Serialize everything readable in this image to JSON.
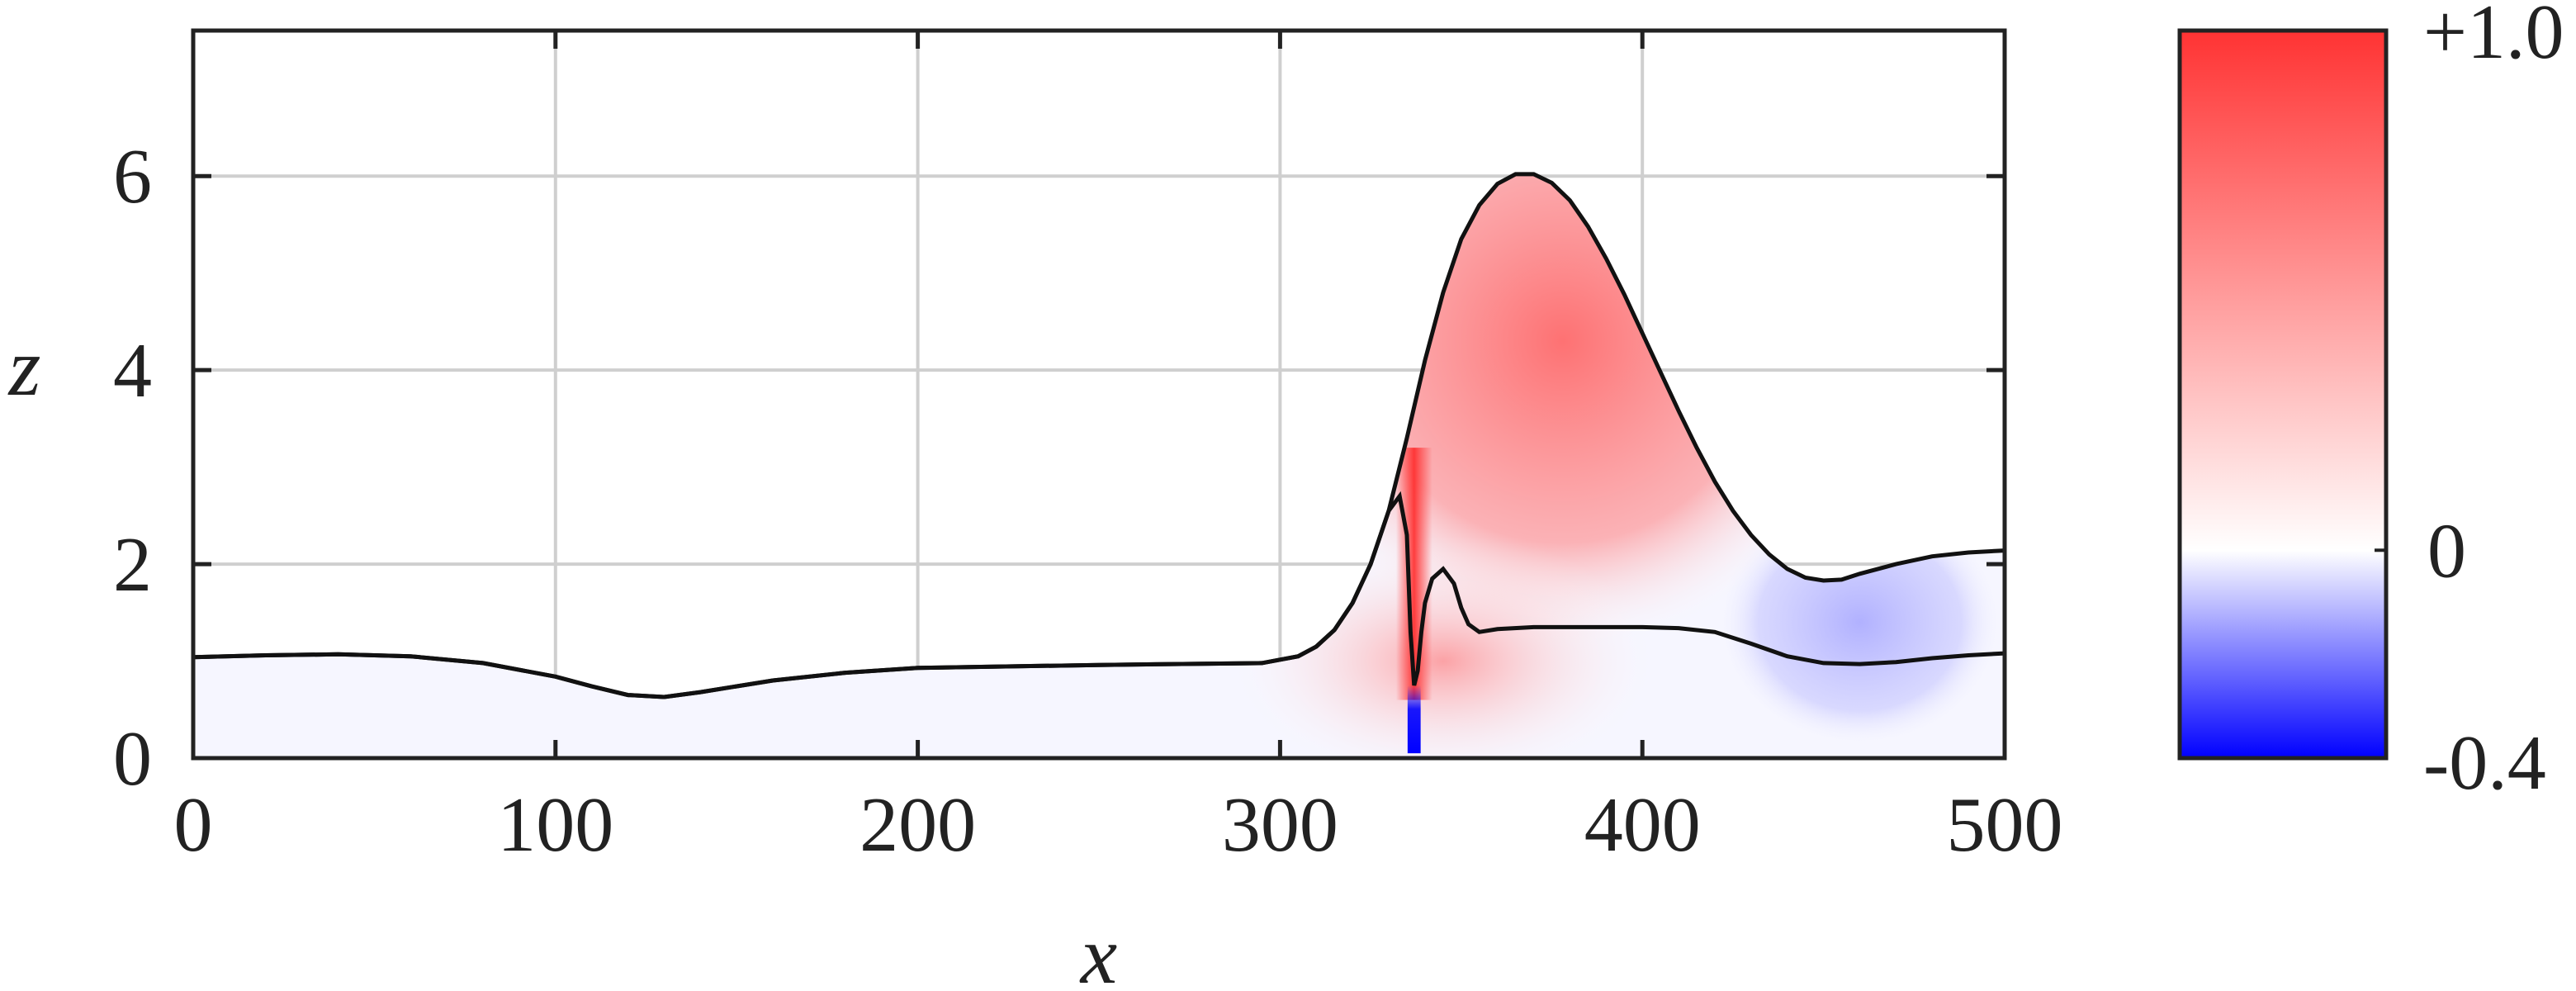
{
  "chart_data": {
    "type": "heatmap",
    "title": "",
    "xlabel": "x",
    "ylabel": "z",
    "xlim": [
      0,
      500
    ],
    "ylim": [
      0,
      7.5
    ],
    "xticks": [
      0,
      100,
      200,
      300,
      400,
      500
    ],
    "yticks": [
      0,
      2,
      4,
      6
    ],
    "grid": true,
    "colorbar": {
      "min": -0.4,
      "max": 1.0,
      "tick_labels": [
        "+1.0",
        "0",
        "-0.4"
      ],
      "colors": {
        "min": "#0000ff",
        "zero": "#ffffff",
        "max": "#ff3333"
      }
    },
    "series": [
      {
        "x": [
          0,
          20,
          40,
          60,
          80,
          100,
          110,
          120,
          130,
          140,
          160,
          180,
          200,
          250,
          295,
          305,
          310,
          315,
          320,
          325,
          330,
          335,
          340,
          345,
          350,
          355,
          360,
          365,
          370,
          375,
          380,
          385,
          390,
          395,
          400,
          405,
          410,
          415,
          420,
          425,
          430,
          435,
          440,
          445,
          450,
          455,
          460,
          470,
          480,
          490,
          500
        ],
        "y": [
          1.04,
          1.06,
          1.07,
          1.05,
          0.98,
          0.84,
          0.74,
          0.65,
          0.63,
          0.68,
          0.8,
          0.88,
          0.93,
          0.96,
          0.98,
          1.05,
          1.15,
          1.32,
          1.6,
          2.0,
          2.55,
          3.3,
          4.1,
          4.8,
          5.35,
          5.7,
          5.92,
          6.02,
          6.02,
          5.93,
          5.75,
          5.48,
          5.15,
          4.78,
          4.38,
          3.98,
          3.58,
          3.2,
          2.85,
          2.55,
          2.3,
          2.1,
          1.95,
          1.86,
          1.83,
          1.84,
          1.9,
          2.0,
          2.08,
          2.12,
          2.14
        ]
      },
      {
        "x": [
          0,
          20,
          40,
          60,
          80,
          100,
          110,
          120,
          130,
          140,
          160,
          180,
          200,
          250,
          295,
          305,
          310,
          315,
          320,
          325,
          330,
          333,
          335,
          336,
          337,
          338,
          339,
          340,
          342,
          345,
          348,
          350,
          352,
          355,
          360,
          370,
          380,
          390,
          400,
          410,
          420,
          430,
          440,
          450,
          460,
          470,
          480,
          490,
          500
        ],
        "y": [
          1.04,
          1.06,
          1.07,
          1.05,
          0.98,
          0.84,
          0.74,
          0.65,
          0.63,
          0.68,
          0.8,
          0.88,
          0.93,
          0.96,
          0.98,
          1.05,
          1.15,
          1.32,
          1.6,
          2.0,
          2.55,
          2.7,
          2.3,
          1.3,
          0.75,
          0.9,
          1.3,
          1.6,
          1.85,
          1.95,
          1.8,
          1.55,
          1.38,
          1.3,
          1.33,
          1.35,
          1.35,
          1.35,
          1.35,
          1.34,
          1.3,
          1.18,
          1.05,
          0.98,
          0.97,
          0.99,
          1.03,
          1.06,
          1.08
        ]
      }
    ]
  }
}
